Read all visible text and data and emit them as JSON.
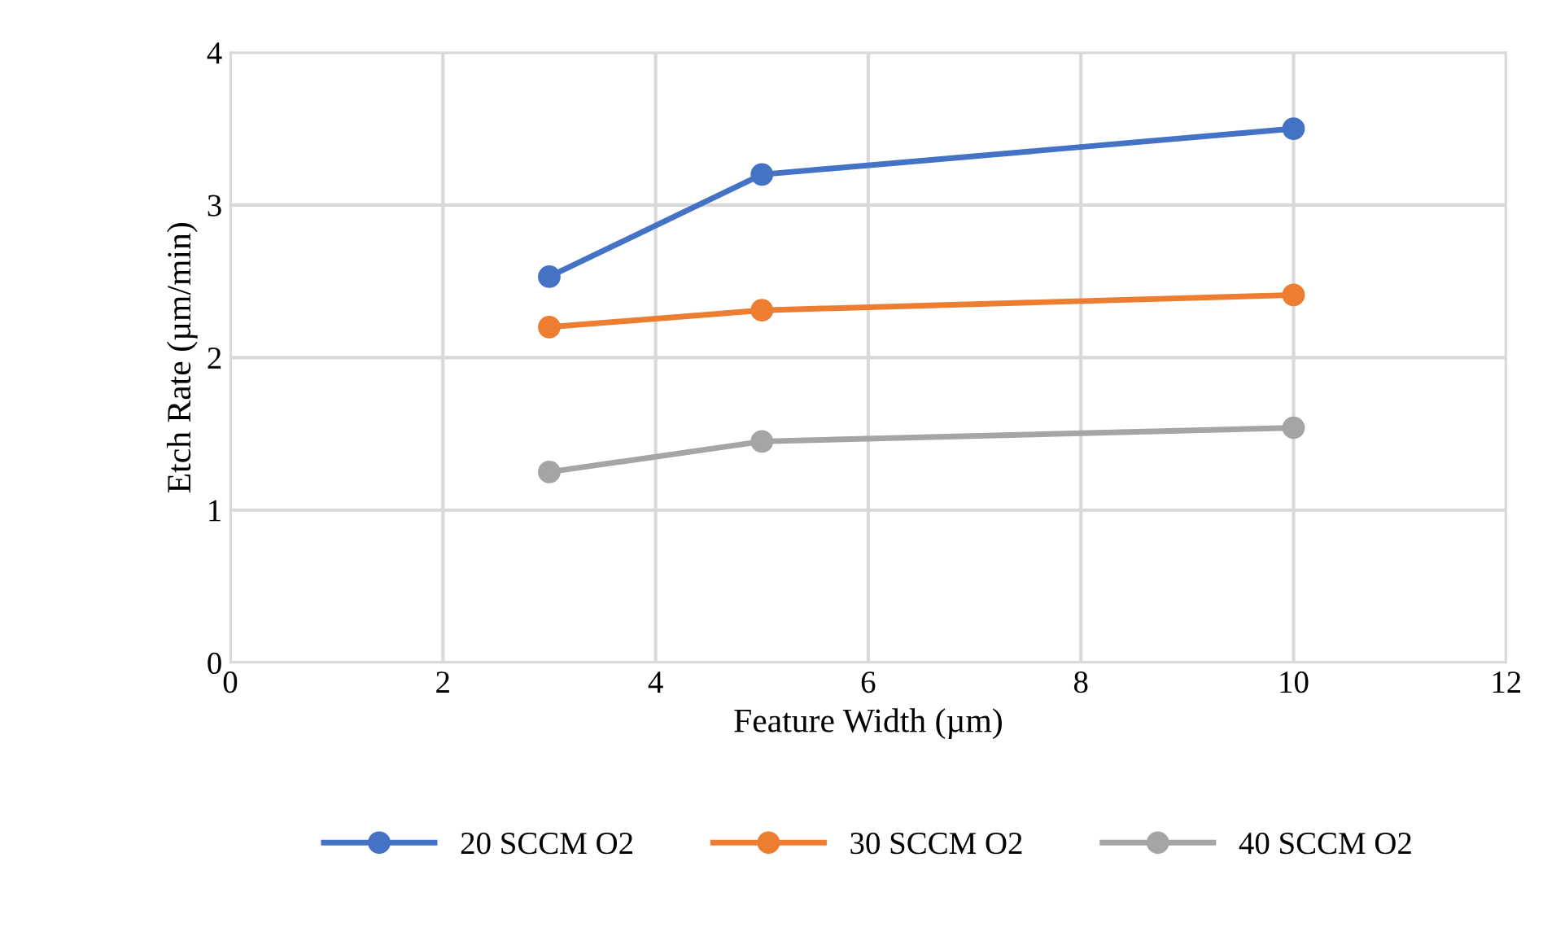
{
  "chart_data": {
    "type": "line",
    "xlabel": "Feature Width (µm)",
    "ylabel": "Etch Rate (µm/min)",
    "xlim": [
      0,
      12
    ],
    "xticks": [
      0,
      2,
      4,
      6,
      8,
      10,
      12
    ],
    "ylim": [
      0,
      4
    ],
    "yticks": [
      0,
      1,
      2,
      3,
      4
    ],
    "grid": true,
    "legend": "bottom",
    "marker": "circle",
    "line_style": "solid",
    "series": [
      {
        "name": "20 SCCM O2",
        "color": "#4472c4",
        "x": [
          3,
          5,
          10
        ],
        "values": [
          2.53,
          3.2,
          3.5
        ]
      },
      {
        "name": "30 SCCM O2",
        "color": "#ed7d31",
        "x": [
          3,
          5,
          10
        ],
        "values": [
          2.2,
          2.31,
          2.41
        ]
      },
      {
        "name": "40 SCCM O2",
        "color": "#a5a5a5",
        "x": [
          3,
          5,
          10
        ],
        "values": [
          1.25,
          1.45,
          1.54
        ]
      }
    ]
  }
}
